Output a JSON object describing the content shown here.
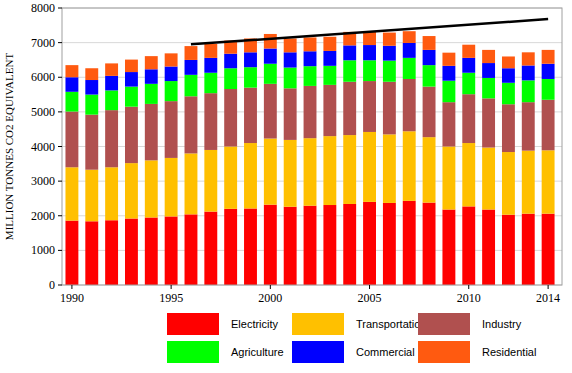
{
  "chart_data": {
    "type": "bar",
    "stacked": true,
    "grid": true,
    "legend": "bottom",
    "y_label": "MILLION TONNES CO2 EQUIVALENT",
    "x": [
      1990,
      1991,
      1992,
      1993,
      1994,
      1995,
      1996,
      1997,
      1998,
      1999,
      2000,
      2001,
      2002,
      2003,
      2004,
      2005,
      2006,
      2007,
      2008,
      2009,
      2010,
      2011,
      2012,
      2013,
      2014
    ],
    "xlim": [
      1989.5,
      2014.7
    ],
    "xticks": [
      1990,
      1995,
      2000,
      2005,
      2010,
      2014
    ],
    "ylim": [
      0,
      8000
    ],
    "yticks": [
      0,
      1000,
      2000,
      3000,
      4000,
      5000,
      6000,
      7000,
      8000
    ],
    "series": [
      {
        "name": "Electricity",
        "color": "#ff0000",
        "values": [
          1860,
          1840,
          1870,
          1920,
          1950,
          1980,
          2040,
          2120,
          2200,
          2210,
          2320,
          2260,
          2290,
          2310,
          2340,
          2400,
          2370,
          2430,
          2380,
          2180,
          2270,
          2180,
          2030,
          2060,
          2060
        ]
      },
      {
        "name": "Transportation",
        "color": "#ffc000",
        "values": [
          1540,
          1490,
          1530,
          1600,
          1650,
          1690,
          1760,
          1780,
          1800,
          1890,
          1910,
          1930,
          1950,
          1990,
          1990,
          2020,
          1980,
          2010,
          1890,
          1820,
          1830,
          1790,
          1810,
          1820,
          1830
        ]
      },
      {
        "name": "Industry",
        "color": "#b0504f",
        "values": [
          1610,
          1590,
          1650,
          1630,
          1630,
          1640,
          1650,
          1640,
          1660,
          1600,
          1580,
          1490,
          1510,
          1480,
          1540,
          1470,
          1520,
          1510,
          1460,
          1280,
          1410,
          1420,
          1380,
          1400,
          1460
        ]
      },
      {
        "name": "Agriculture",
        "color": "#00ff00",
        "values": [
          570,
          580,
          570,
          580,
          580,
          580,
          620,
          590,
          600,
          590,
          580,
          600,
          570,
          550,
          620,
          600,
          610,
          610,
          620,
          620,
          620,
          590,
          620,
          630,
          600
        ]
      },
      {
        "name": "Commercial",
        "color": "#0000ff",
        "values": [
          420,
          420,
          420,
          420,
          420,
          420,
          430,
          430,
          420,
          430,
          440,
          440,
          430,
          430,
          430,
          440,
          430,
          430,
          440,
          430,
          430,
          430,
          420,
          430,
          440
        ]
      },
      {
        "name": "Residential",
        "color": "#ff5a10",
        "values": [
          350,
          340,
          360,
          360,
          380,
          380,
          400,
          400,
          380,
          400,
          420,
          400,
          400,
          410,
          390,
          400,
          380,
          340,
          400,
          380,
          380,
          380,
          340,
          380,
          400
        ]
      }
    ],
    "trend": {
      "x": [
        1996,
        2014
      ],
      "values": [
        6950,
        7680
      ],
      "color": "#000000"
    }
  }
}
